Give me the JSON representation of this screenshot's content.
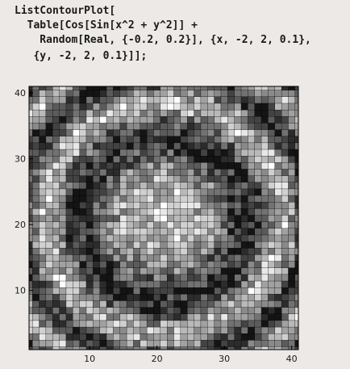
{
  "notebook": {
    "input_lines": [
      "ListContourPlot[",
      "  Table[Cos[Sin[x^2 + y^2]] +",
      "    Random[Real, {-0.2, 0.2}], {x, -2, 2, 0.1},",
      "   {y, -2, 2, 0.1}]];"
    ]
  },
  "chart_data": {
    "type": "heatmap",
    "title": "",
    "xlabel": "",
    "ylabel": "",
    "xlim": [
      1,
      41
    ],
    "ylim": [
      1,
      41
    ],
    "x_ticks": [
      10,
      20,
      30,
      40
    ],
    "y_ticks": [
      10,
      20,
      30,
      40
    ],
    "grid": false,
    "colors": {
      "low": "#000000",
      "high": "#ffffff",
      "frame": "#000000"
    }
  }
}
